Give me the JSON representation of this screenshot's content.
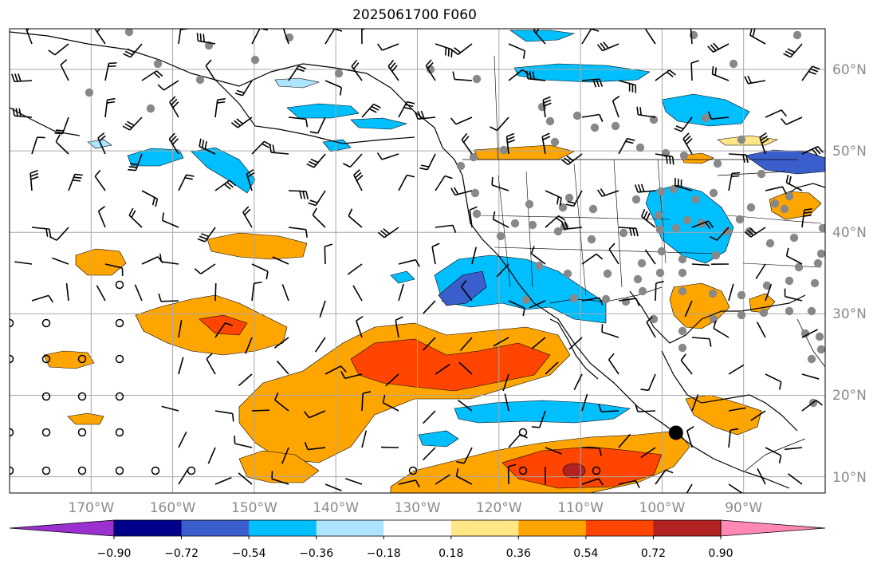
{
  "title": "2025061700 F060",
  "map": {
    "projection": "equirectangular",
    "extent_lon": [
      -180,
      -80
    ],
    "extent_lat": [
      8,
      65
    ],
    "longitude_labels": [
      "170°W",
      "160°W",
      "150°W",
      "140°W",
      "130°W",
      "120°W",
      "110°W",
      "100°W",
      "90°W"
    ],
    "latitude_labels": [
      "60°N",
      "50°N",
      "40°N",
      "30°N",
      "20°N",
      "10°N"
    ],
    "grid": true,
    "storm_marker": {
      "label": "storm-center",
      "lon": -98.3,
      "lat": 15.4
    }
  },
  "colorbar": {
    "labels": [
      "−0.90",
      "−0.72",
      "−0.54",
      "−0.36",
      "−0.18",
      "0.18",
      "0.36",
      "0.54",
      "0.72",
      "0.90"
    ],
    "colors": [
      "#9b30d0",
      "#00008b",
      "#3a5fcd",
      "#00bfff",
      "#aee4ff",
      "#ffffff",
      "#ffe788",
      "#ffa500",
      "#ff4500",
      "#b22222",
      "#ff88b4"
    ],
    "extend": "both"
  },
  "colors": {
    "grid": "#a8a8a8",
    "coast": "#000000",
    "station": "#888888",
    "axis_label": "#8a8a8a"
  }
}
